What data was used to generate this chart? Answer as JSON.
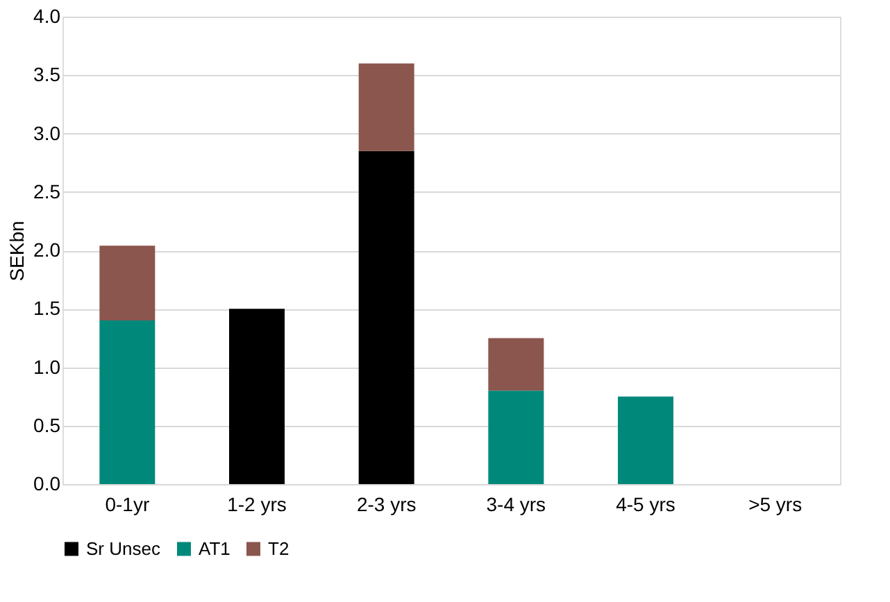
{
  "chart_data": {
    "type": "bar",
    "stacked": true,
    "ylabel": "SEKbn",
    "categories": [
      "0-1yr",
      "1-2 yrs",
      "2-3 yrs",
      "3-4 yrs",
      "4-5 yrs",
      ">5 yrs"
    ],
    "series": [
      {
        "name": "Sr Unsec",
        "color": "#000000",
        "values": [
          null,
          1.5,
          2.85,
          null,
          null,
          null
        ]
      },
      {
        "name": "AT1",
        "color": "#00897b",
        "values": [
          1.4,
          null,
          null,
          0.8,
          0.75,
          null
        ]
      },
      {
        "name": "T2",
        "color": "#8b564e",
        "values": [
          0.64,
          null,
          0.75,
          0.45,
          null,
          null
        ]
      }
    ],
    "ylim": [
      0,
      4
    ],
    "yticks": [
      {
        "value": 0,
        "label": "0.0"
      },
      {
        "value": 0.5,
        "label": "0.5"
      },
      {
        "value": 1,
        "label": "1.0"
      },
      {
        "value": 1.5,
        "label": "1.5"
      },
      {
        "value": 2,
        "label": "2.0"
      },
      {
        "value": 2.5,
        "label": "2.5"
      },
      {
        "value": 3,
        "label": "3.0"
      },
      {
        "value": 3.5,
        "label": "3.5"
      },
      {
        "value": 4,
        "label": "4.0"
      }
    ],
    "grid": "y",
    "legend": "bottom"
  }
}
